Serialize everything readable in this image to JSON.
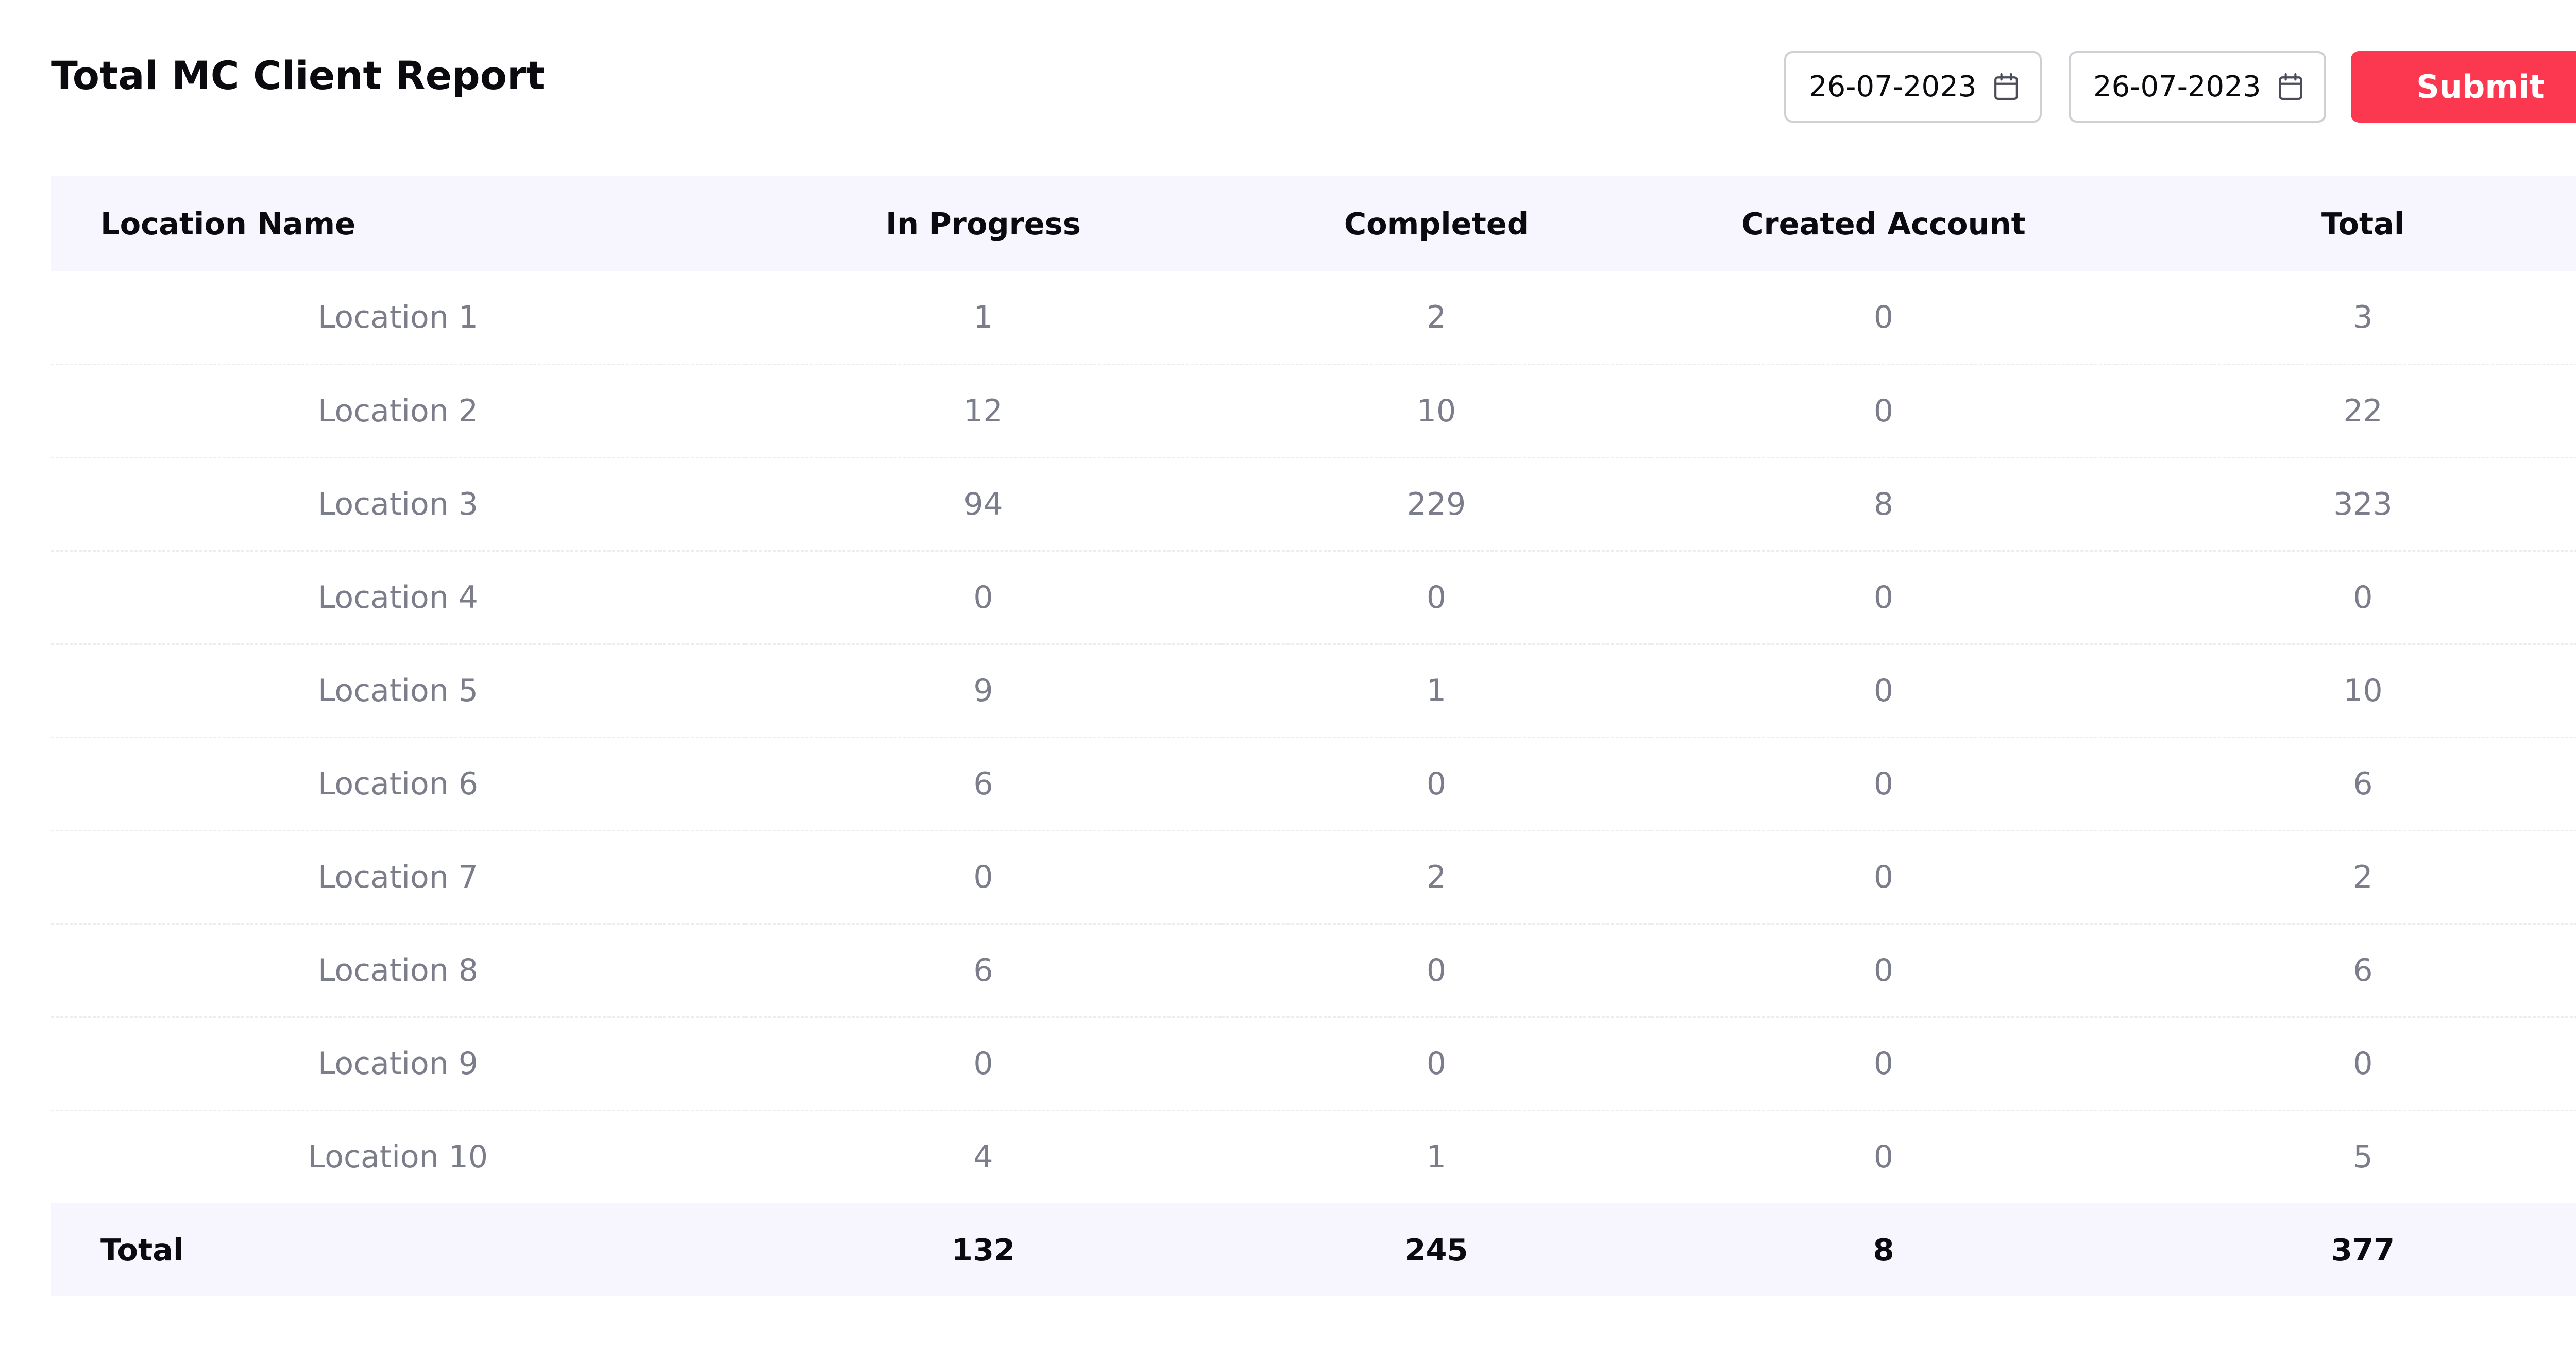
{
  "page": {
    "title": "Total MC Client Report"
  },
  "filters": {
    "date_from": "26-07-2023",
    "date_to": "26-07-2023",
    "calendar_icon": "calendar-icon",
    "submit_label": "Submit",
    "accent_color": "#fc3750"
  },
  "table": {
    "columns": [
      "Location Name",
      "In Progress",
      "Completed",
      "Created Account",
      "Total"
    ],
    "rows": [
      [
        "Location 1",
        "1",
        "2",
        "0",
        "3"
      ],
      [
        "Location 2",
        "12",
        "10",
        "0",
        "22"
      ],
      [
        "Location 3",
        "94",
        "229",
        "8",
        "323"
      ],
      [
        "Location 4",
        "0",
        "0",
        "0",
        "0"
      ],
      [
        "Location 5",
        "9",
        "1",
        "0",
        "10"
      ],
      [
        "Location 6",
        "6",
        "0",
        "0",
        "6"
      ],
      [
        "Location 7",
        "0",
        "2",
        "0",
        "2"
      ],
      [
        "Location 8",
        "6",
        "0",
        "0",
        "6"
      ],
      [
        "Location 9",
        "0",
        "0",
        "0",
        "0"
      ],
      [
        "Location 10",
        "4",
        "1",
        "0",
        "5"
      ]
    ],
    "footer": [
      "Total",
      "132",
      "245",
      "8",
      "377"
    ],
    "header_background": "#f7f6fe"
  }
}
